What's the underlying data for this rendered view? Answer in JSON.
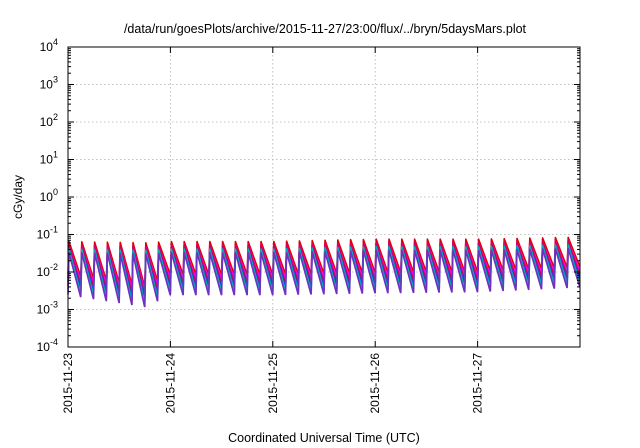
{
  "chart_data": {
    "type": "line",
    "title": "/data/run/goesPlots/archive/2015-11-27/23:00/flux/../bryn/5daysMars.plot",
    "xlabel": "Coordinated Universal Time (UTC)",
    "ylabel": "cGy/day",
    "y_scale": "log",
    "ylim": [
      0.0001,
      10000
    ],
    "xlim": [
      "2015-11-23T00:00",
      "2015-11-28T00:00"
    ],
    "y_ticks": [
      {
        "value": 0.0001,
        "base": "10",
        "exp": "-4"
      },
      {
        "value": 0.001,
        "base": "10",
        "exp": "-3"
      },
      {
        "value": 0.01,
        "base": "10",
        "exp": "-2"
      },
      {
        "value": 0.1,
        "base": "10",
        "exp": "-1"
      },
      {
        "value": 1,
        "base": "10",
        "exp": "0"
      },
      {
        "value": 10,
        "base": "10",
        "exp": "1"
      },
      {
        "value": 100,
        "base": "10",
        "exp": "2"
      },
      {
        "value": 1000,
        "base": "10",
        "exp": "3"
      },
      {
        "value": 10000,
        "base": "10",
        "exp": "4"
      }
    ],
    "x_ticks": [
      {
        "value": "2015-11-23T00:00",
        "label": "2015-11-23"
      },
      {
        "value": "2015-11-24T00:00",
        "label": "2015-11-24"
      },
      {
        "value": "2015-11-25T00:00",
        "label": "2015-11-25"
      },
      {
        "value": "2015-11-26T00:00",
        "label": "2015-11-26"
      },
      {
        "value": "2015-11-27T00:00",
        "label": "2015-11-27"
      }
    ],
    "grid": true,
    "legend": "none",
    "series_colors": [
      "#e00000",
      "#ff00ff",
      "#cc0066",
      "#1f3fd0",
      "#00b0b0",
      "#7030c0"
    ],
    "pattern": "sawtooth, ~3 h period, sharp rise then decay",
    "envelope": [
      {
        "x": "2015-11-23T00:00",
        "peak_max": 0.065,
        "trough_min": 0.0025
      },
      {
        "x": "2015-11-23T18:00",
        "peak_max": 0.06,
        "trough_min": 0.0012
      },
      {
        "x": "2015-11-24T00:00",
        "peak_max": 0.065,
        "trough_min": 0.0025
      },
      {
        "x": "2015-11-25T00:00",
        "peak_max": 0.065,
        "trough_min": 0.0025
      },
      {
        "x": "2015-11-26T00:00",
        "peak_max": 0.075,
        "trough_min": 0.0028
      },
      {
        "x": "2015-11-27T00:00",
        "peak_max": 0.075,
        "trough_min": 0.003
      },
      {
        "x": "2015-11-28T00:00",
        "peak_max": 0.085,
        "trough_min": 0.004
      }
    ]
  }
}
